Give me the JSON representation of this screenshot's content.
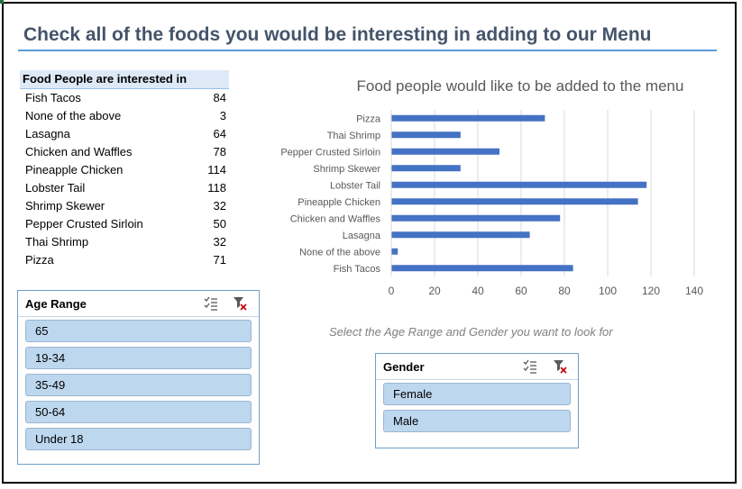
{
  "page": {
    "title": "Check all of the foods you would be interesting in adding to our Menu",
    "hint": "Select the Age Range and Gender you want to look for"
  },
  "pivot": {
    "header": "Food People are interested in",
    "rows": [
      {
        "label": "Fish Tacos",
        "value": "84"
      },
      {
        "label": "None of the above",
        "value": "3"
      },
      {
        "label": "Lasagna",
        "value": "64"
      },
      {
        "label": "Chicken and Waffles",
        "value": "78"
      },
      {
        "label": "Pineapple Chicken",
        "value": "114"
      },
      {
        "label": "Lobster Tail",
        "value": "118"
      },
      {
        "label": "Shrimp Skewer",
        "value": "32"
      },
      {
        "label": "Pepper Crusted Sirloin",
        "value": "50"
      },
      {
        "label": "Thai Shrimp",
        "value": "32"
      },
      {
        "label": "Pizza",
        "value": "71"
      }
    ]
  },
  "age_slicer": {
    "title": "Age Range",
    "items": [
      "65",
      "19-34",
      "35-49",
      "50-64",
      "Under 18"
    ],
    "icons": [
      "multi-select-icon",
      "clear-filter-icon"
    ]
  },
  "gender_slicer": {
    "title": "Gender",
    "items": [
      "Female",
      "Male"
    ],
    "icons": [
      "multi-select-icon",
      "clear-filter-icon"
    ]
  },
  "chart_data": {
    "type": "bar",
    "orientation": "horizontal",
    "title": "Food people would like to be added to the menu",
    "categories": [
      "Fish Tacos",
      "None of the above",
      "Lasagna",
      "Chicken and Waffles",
      "Pineapple Chicken",
      "Lobster Tail",
      "Shrimp Skewer",
      "Pepper Crusted Sirloin",
      "Thai Shrimp",
      "Pizza"
    ],
    "values": [
      84,
      3,
      64,
      78,
      114,
      118,
      32,
      50,
      32,
      71
    ],
    "xlim": [
      0,
      140
    ],
    "xticks": [
      0,
      20,
      40,
      60,
      80,
      100,
      120,
      140
    ],
    "grid": true,
    "bar_color": "#4472c4"
  },
  "colors": {
    "title": "#44546a",
    "accent": "#5b9bd5",
    "slicer_item": "#bdd7ee",
    "bar": "#4472c4"
  }
}
